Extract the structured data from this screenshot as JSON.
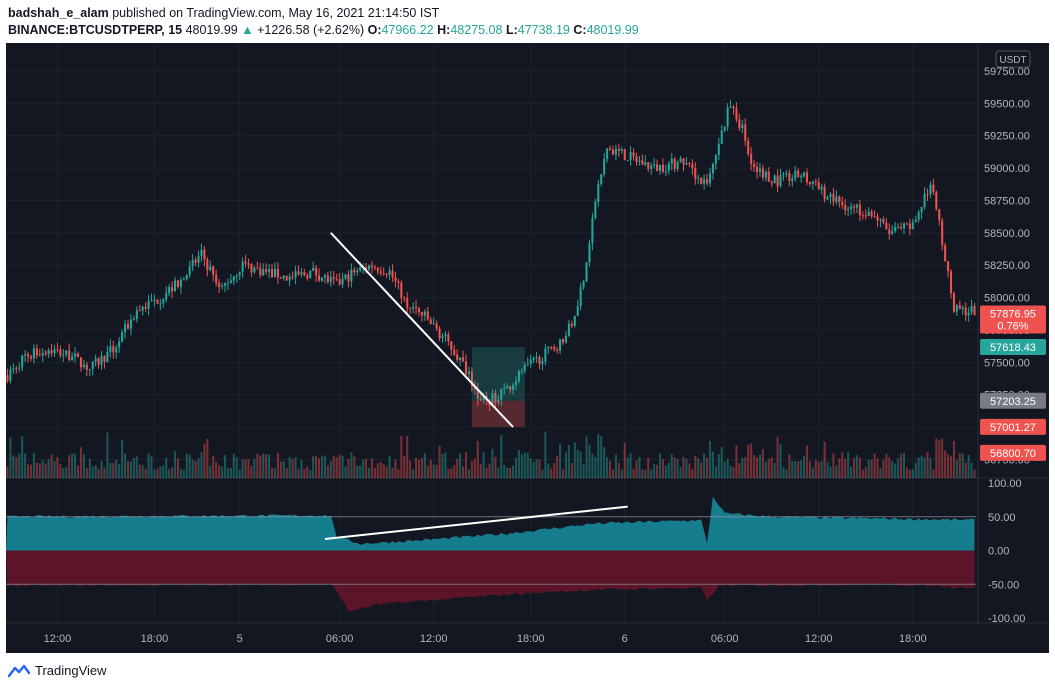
{
  "header": {
    "author": "badshah_e_alam",
    "published_text": "published on TradingView.com, May 16, 2021 21:14:50 IST",
    "symbol": "BINANCE:BTCUSDTPERP, 15",
    "last": "48019.99",
    "change_arrow": "▲",
    "change": "+1226.58 (+2.62%)",
    "o_label": "O:",
    "o_value": "47966.22",
    "h_label": "H:",
    "h_value": "48275.08",
    "l_label": "L:",
    "l_value": "47738.19",
    "c_label": "C:",
    "c_value": "48019.99"
  },
  "footer": {
    "brand": "TradingView"
  },
  "colors": {
    "bg": "#131722",
    "up": "#26a69a",
    "down": "#ef5350",
    "grid": "#1e222d",
    "axis_text": "#b2b5be",
    "osc_up": "#167d8f",
    "osc_down": "#5b1428"
  },
  "chart_data": [
    {
      "type": "candlestick",
      "currency_badge": "USDT",
      "ylim": [
        56800,
        59750
      ],
      "y_ticks": [
        "59750.00",
        "59500.00",
        "59250.00",
        "59000.00",
        "58750.00",
        "58500.00",
        "58250.00",
        "58000.00",
        "57750.00",
        "57500.00",
        "57250.00",
        "57000.00",
        "56750.00"
      ],
      "x_ticks": [
        "12:00",
        "18:00",
        "5",
        "06:00",
        "12:00",
        "18:00",
        "6",
        "06:00",
        "12:00",
        "18:00"
      ],
      "anchors": [
        [
          0,
          57400
        ],
        [
          6,
          57550
        ],
        [
          14,
          57600
        ],
        [
          22,
          57550
        ],
        [
          28,
          57450
        ],
        [
          36,
          57600
        ],
        [
          44,
          57900
        ],
        [
          52,
          58000
        ],
        [
          60,
          58150
        ],
        [
          66,
          58350
        ],
        [
          72,
          58050
        ],
        [
          80,
          58250
        ],
        [
          88,
          58200
        ],
        [
          96,
          58150
        ],
        [
          104,
          58200
        ],
        [
          112,
          58100
        ],
        [
          118,
          58200
        ],
        [
          124,
          58250
        ],
        [
          130,
          58200
        ],
        [
          136,
          57950
        ],
        [
          142,
          57850
        ],
        [
          150,
          57650
        ],
        [
          156,
          57450
        ],
        [
          160,
          57250
        ],
        [
          164,
          57200
        ],
        [
          170,
          57300
        ],
        [
          176,
          57450
        ],
        [
          182,
          57550
        ],
        [
          188,
          57650
        ],
        [
          192,
          57800
        ],
        [
          196,
          58150
        ],
        [
          200,
          58750
        ],
        [
          204,
          59150
        ],
        [
          210,
          59100
        ],
        [
          220,
          59000
        ],
        [
          230,
          59050
        ],
        [
          238,
          58850
        ],
        [
          242,
          59200
        ],
        [
          246,
          59500
        ],
        [
          250,
          59300
        ],
        [
          254,
          59000
        ],
        [
          262,
          58900
        ],
        [
          270,
          58950
        ],
        [
          278,
          58800
        ],
        [
          286,
          58700
        ],
        [
          294,
          58650
        ],
        [
          300,
          58500
        ],
        [
          308,
          58550
        ],
        [
          314,
          58900
        ],
        [
          318,
          58450
        ],
        [
          322,
          57900
        ],
        [
          328,
          57900
        ]
      ],
      "candle_count": 330,
      "price_labels": [
        {
          "text": "57876.95",
          "sub": "0.76%",
          "value": 57876.95,
          "color": "#ef5350"
        },
        {
          "text": "57618.43",
          "value": 57618.43,
          "color": "#26a69a"
        },
        {
          "text": "57203.25",
          "value": 57203.25,
          "color": "#787b86"
        },
        {
          "text": "57001.27",
          "value": 57001.27,
          "color": "#ef5350"
        },
        {
          "text": "56800.70",
          "value": 56800.7,
          "color": "#ef5350"
        }
      ],
      "trendline": [
        [
          110,
          58500
        ],
        [
          172,
          57000
        ]
      ],
      "position_box": {
        "x_from": 158,
        "x_to": 176,
        "entry": 57203.25,
        "target": 57618.43,
        "stop": 57001.27
      }
    },
    {
      "type": "area",
      "ylim": [
        -100,
        100
      ],
      "y_ticks": [
        "100.00",
        "50.00",
        "0.00",
        "-50.00",
        "-100.00"
      ],
      "levels": [
        50,
        -50
      ],
      "upper_anchors": [
        [
          0,
          50
        ],
        [
          110,
          52
        ],
        [
          112,
          20
        ],
        [
          120,
          10
        ],
        [
          140,
          15
        ],
        [
          170,
          25
        ],
        [
          200,
          40
        ],
        [
          236,
          45
        ],
        [
          238,
          10
        ],
        [
          240,
          80
        ],
        [
          244,
          55
        ],
        [
          260,
          50
        ],
        [
          330,
          45
        ]
      ],
      "lower_anchors": [
        [
          0,
          -52
        ],
        [
          110,
          -50
        ],
        [
          112,
          -60
        ],
        [
          116,
          -90
        ],
        [
          126,
          -80
        ],
        [
          140,
          -75
        ],
        [
          170,
          -65
        ],
        [
          200,
          -58
        ],
        [
          236,
          -55
        ],
        [
          238,
          -75
        ],
        [
          242,
          -52
        ],
        [
          300,
          -50
        ],
        [
          330,
          -55
        ]
      ],
      "trendline": [
        [
          108,
          17
        ],
        [
          211,
          65
        ]
      ]
    }
  ]
}
